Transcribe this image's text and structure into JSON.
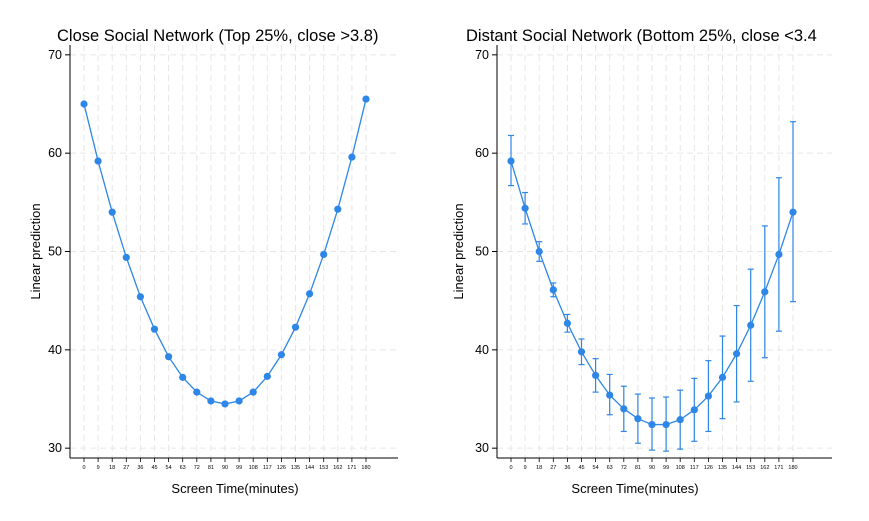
{
  "chart_data": [
    {
      "type": "line",
      "title": "Close Social Network (Top 25%, close >3.8)",
      "xlabel": "Screen Time(minutes)",
      "ylabel": "Linear prediction",
      "x": [
        0,
        9,
        18,
        27,
        36,
        45,
        54,
        63,
        72,
        81,
        90,
        99,
        108,
        117,
        126,
        135,
        144,
        153,
        162,
        171,
        180
      ],
      "x_tick_labels": [
        "0",
        "9",
        "18",
        "27",
        "36",
        "45",
        "54",
        "63",
        "72",
        "81",
        "90",
        "99",
        "108",
        "117",
        "126",
        "135",
        "144",
        "153",
        "162",
        "171",
        "180"
      ],
      "ylim": [
        29,
        71
      ],
      "yticks": [
        30,
        40,
        50,
        60,
        70
      ],
      "grid": true,
      "color": "#2e86e6",
      "series": [
        {
          "values": [
            65.0,
            59.2,
            54.0,
            49.4,
            45.4,
            42.1,
            39.3,
            37.2,
            35.7,
            34.8,
            34.5,
            34.8,
            35.7,
            37.3,
            39.5,
            42.3,
            45.7,
            49.7,
            54.3,
            59.6,
            65.5
          ],
          "error_low": [],
          "error_high": []
        }
      ]
    },
    {
      "type": "line",
      "title": "Distant Social Network (Bottom 25%, close <3.4",
      "xlabel": "Screen Time(minutes)",
      "ylabel": "Linear prediction",
      "x": [
        0,
        9,
        18,
        27,
        36,
        45,
        54,
        63,
        72,
        81,
        90,
        99,
        108,
        117,
        126,
        135,
        144,
        153,
        162,
        171,
        180
      ],
      "x_tick_labels": [
        "0",
        "9",
        "18",
        "27",
        "36",
        "45",
        "54",
        "63",
        "72",
        "81",
        "90",
        "99",
        "108",
        "117",
        "126",
        "135",
        "144",
        "153",
        "162",
        "171",
        "180"
      ],
      "ylim": [
        29,
        71
      ],
      "yticks": [
        30,
        40,
        50,
        60,
        70
      ],
      "grid": true,
      "color": "#2e86e6",
      "series": [
        {
          "values": [
            59.2,
            54.4,
            50.0,
            46.1,
            42.7,
            39.8,
            37.4,
            35.4,
            34.0,
            33.0,
            32.4,
            32.4,
            32.9,
            33.9,
            35.3,
            37.2,
            39.6,
            42.5,
            45.9,
            49.7,
            54.0
          ],
          "error_low": [
            56.7,
            52.8,
            49.0,
            45.4,
            41.8,
            38.5,
            35.7,
            33.4,
            31.7,
            30.5,
            29.8,
            29.7,
            29.9,
            30.7,
            31.7,
            33.0,
            34.7,
            36.8,
            39.2,
            41.9,
            44.9
          ],
          "error_high": [
            61.8,
            56.0,
            51.0,
            46.8,
            43.6,
            41.1,
            39.1,
            37.5,
            36.3,
            35.5,
            35.1,
            35.2,
            35.9,
            37.1,
            38.9,
            41.4,
            44.5,
            48.2,
            52.6,
            57.5,
            63.2
          ]
        }
      ]
    }
  ]
}
